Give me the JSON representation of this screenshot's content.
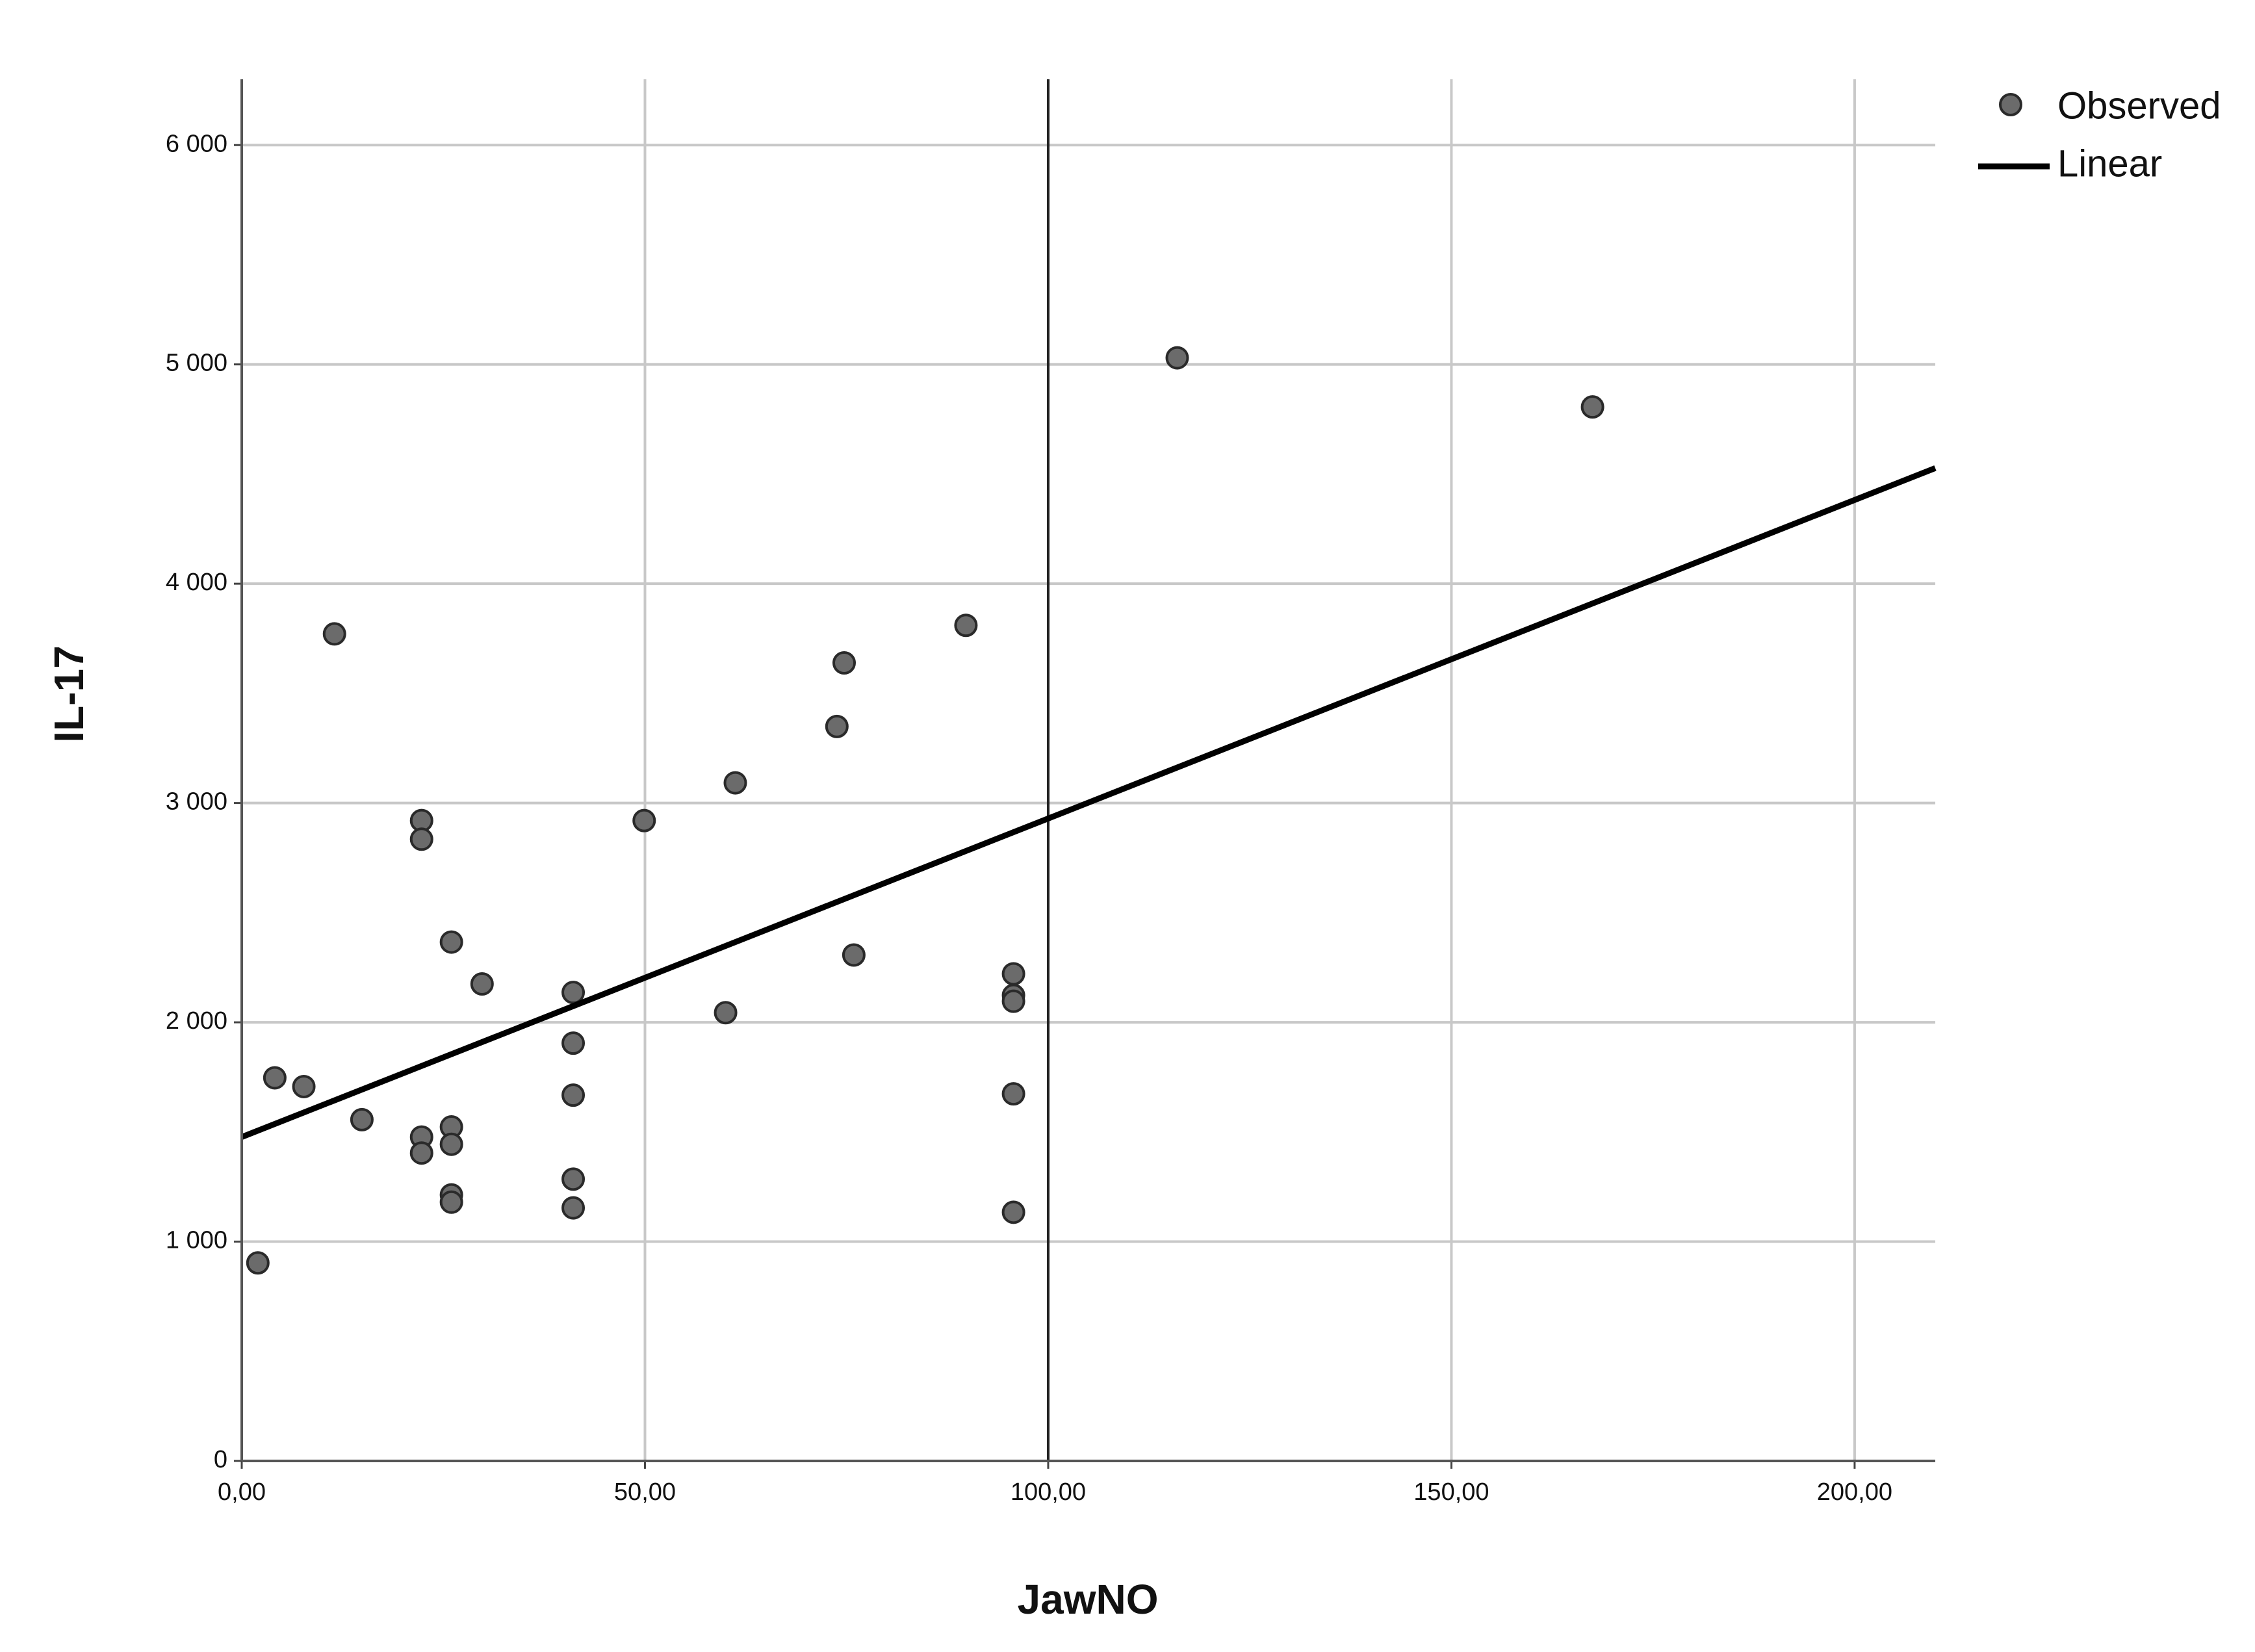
{
  "chart_data": {
    "type": "scatter",
    "x_label": "JawNO",
    "y_label": "IL-17",
    "xlim": [
      0,
      210
    ],
    "ylim": [
      0,
      6300
    ],
    "xticks": [
      {
        "value": 0,
        "label": "0,00"
      },
      {
        "value": 50,
        "label": "50,00"
      },
      {
        "value": 100,
        "label": "100,00"
      },
      {
        "value": 150,
        "label": "150,00"
      },
      {
        "value": 200,
        "label": "200,00"
      }
    ],
    "yticks": [
      0,
      {
        "value": 1000,
        "label": "1 000"
      },
      {
        "value": 2000,
        "label": "2 000"
      },
      {
        "value": 3000,
        "label": "3 000"
      },
      {
        "value": 4000,
        "label": "4 000"
      },
      {
        "value": 5000,
        "label": "5 000"
      },
      {
        "value": 6000,
        "label": "6 000"
      }
    ],
    "grid": true,
    "reference_x": 100,
    "legend": "top-right",
    "series": [
      {
        "name": "Observed",
        "kind": "points",
        "color": "#6b6b6b",
        "x": [
          2.0,
          4.1,
          7.7,
          11.5,
          14.9,
          22.3,
          22.3,
          22.3,
          22.3,
          26.0,
          26.0,
          26.0,
          26.0,
          26.0,
          29.8,
          41.1,
          41.1,
          41.1,
          41.1,
          41.1,
          49.9,
          60.0,
          61.2,
          73.8,
          74.7,
          75.9,
          89.8,
          95.7,
          95.7,
          95.7,
          95.7,
          95.7,
          116.0,
          167.5
        ],
        "values": [
          903,
          1747,
          1707,
          3771,
          1556,
          2920,
          2835,
          1477,
          1404,
          2366,
          1523,
          1444,
          1213,
          1180,
          2175,
          2136,
          1905,
          1668,
          1285,
          1154,
          2920,
          2044,
          3092,
          3349,
          3639,
          2307,
          3810,
          2221,
          2123,
          2096,
          1674,
          1134,
          5030,
          4806
        ]
      },
      {
        "name": "Linear",
        "kind": "line",
        "color": "#000000",
        "x": [
          0,
          210
        ],
        "values": [
          1477,
          4527
        ]
      }
    ]
  }
}
